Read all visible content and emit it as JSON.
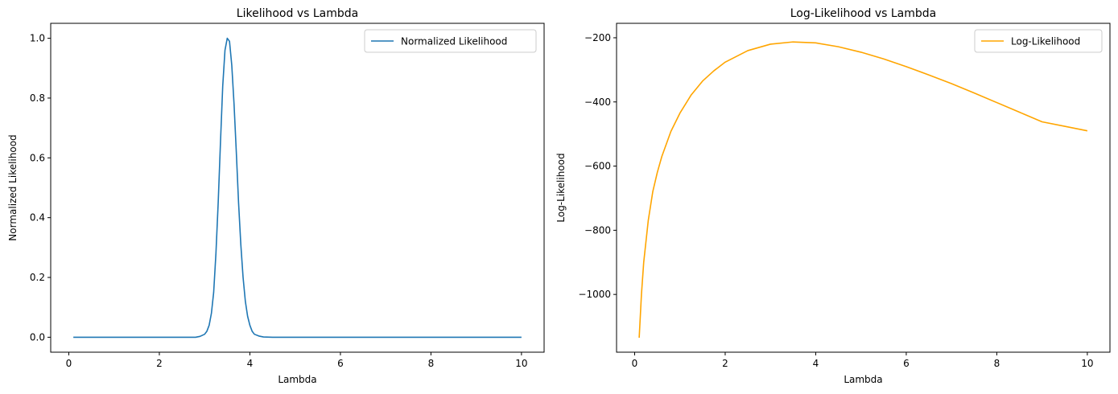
{
  "chart_data": [
    {
      "type": "line",
      "title": "Likelihood vs Lambda",
      "xlabel": "Lambda",
      "ylabel": "Normalized Likelihood",
      "xlim": [
        -0.4,
        10.5
      ],
      "ylim": [
        -0.05,
        1.05
      ],
      "xticks": [
        0,
        2,
        4,
        6,
        8,
        10
      ],
      "xtick_labels": [
        "0",
        "2",
        "4",
        "6",
        "8",
        "10"
      ],
      "yticks": [
        0.0,
        0.2,
        0.4,
        0.6,
        0.8,
        1.0
      ],
      "ytick_labels": [
        "0.0",
        "0.2",
        "0.4",
        "0.6",
        "0.8",
        "1.0"
      ],
      "grid": false,
      "legend_position": "top-right",
      "series": [
        {
          "name": "Normalized Likelihood",
          "color": "#1f77b4",
          "x": [
            0.1,
            1.0,
            2.0,
            2.8,
            2.9,
            3.0,
            3.05,
            3.1,
            3.15,
            3.2,
            3.25,
            3.3,
            3.35,
            3.4,
            3.45,
            3.5,
            3.55,
            3.6,
            3.65,
            3.7,
            3.75,
            3.8,
            3.85,
            3.9,
            3.95,
            4.0,
            4.05,
            4.1,
            4.2,
            4.3,
            4.5,
            5.0,
            6.0,
            8.0,
            10.0
          ],
          "y": [
            0.0,
            0.0,
            0.0,
            0.0,
            0.003,
            0.01,
            0.02,
            0.04,
            0.08,
            0.15,
            0.28,
            0.45,
            0.65,
            0.84,
            0.96,
            1.0,
            0.99,
            0.91,
            0.78,
            0.62,
            0.45,
            0.31,
            0.2,
            0.12,
            0.07,
            0.04,
            0.02,
            0.01,
            0.004,
            0.001,
            0.0,
            0.0,
            0.0,
            0.0,
            0.0
          ]
        }
      ]
    },
    {
      "type": "line",
      "title": "Log-Likelihood vs Lambda",
      "xlabel": "Lambda",
      "ylabel": "Log-Likelihood",
      "xlim": [
        -0.4,
        10.5
      ],
      "ylim": [
        -1180,
        -155
      ],
      "xticks": [
        0,
        2,
        4,
        6,
        8,
        10
      ],
      "xtick_labels": [
        "0",
        "2",
        "4",
        "6",
        "8",
        "10"
      ],
      "yticks": [
        -1000,
        -800,
        -600,
        -400,
        -200
      ],
      "ytick_labels": [
        "−1000",
        "−800",
        "−600",
        "−400",
        "−200"
      ],
      "grid": false,
      "legend_position": "top-right",
      "series": [
        {
          "name": "Log-Likelihood",
          "color": "#ffa500",
          "x": [
            0.1,
            0.15,
            0.2,
            0.3,
            0.4,
            0.5,
            0.6,
            0.8,
            1.0,
            1.25,
            1.5,
            1.75,
            2.0,
            2.5,
            3.0,
            3.5,
            4.0,
            4.5,
            5.0,
            5.5,
            6.0,
            6.5,
            7.0,
            7.5,
            8.0,
            8.5,
            9.0,
            9.5,
            10.0
          ],
          "y": [
            -1135,
            -1000,
            -900,
            -770,
            -680,
            -620,
            -570,
            -492,
            -435,
            -378,
            -335,
            -303,
            -276,
            -240,
            -220,
            -213,
            -216,
            -228,
            -245,
            -266,
            -290,
            -316,
            -343,
            -372,
            -402,
            -432,
            -462,
            -476,
            -490
          ]
        }
      ]
    }
  ]
}
